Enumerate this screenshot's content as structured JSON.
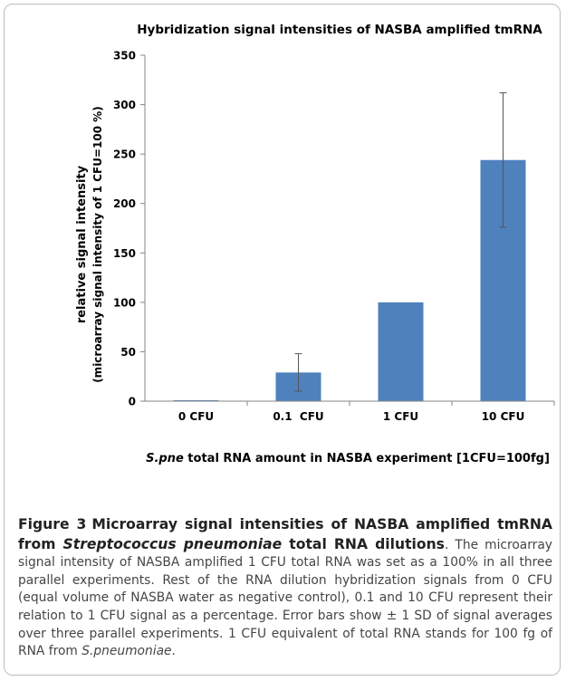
{
  "chart_data": {
    "type": "bar",
    "title": "Hybridization signal intensities of NASBA amplified tmRNA",
    "ylabel_line1": "relative signal intensity",
    "ylabel_line2": "(microarray signal intensity of 1 CFU=100 %)",
    "xlabel_italic": "S.pne",
    "xlabel_rest": " total RNA amount in NASBA experiment [1CFU=100fg]",
    "categories": [
      "0 CFU",
      "0.1  CFU",
      "1 CFU",
      "10 CFU"
    ],
    "values": [
      1,
      29,
      100,
      244
    ],
    "error": [
      0,
      19,
      0,
      68
    ],
    "ylim": [
      0,
      350
    ],
    "yticks": [
      0,
      50,
      100,
      150,
      200,
      250,
      300,
      350
    ],
    "grid": false,
    "legend": false,
    "bar_color": "#4f81bd"
  },
  "caption": {
    "label": "Figure 3",
    "title_part1": "Microarray signal intensities of NASBA amplified tmRNA from ",
    "title_italic": "Streptococcus pneumoniae",
    "title_part2": " total RNA dilutions",
    "title_end": ".",
    "body_part1": " The microarray signal intensity of NASBA amplified 1 CFU total RNA was set as a 100% in all three parallel experiments. Rest of the RNA dilution hybridization signals from 0 CFU (equal volume of NASBA water as negative control), 0.1 and 10 CFU represent their relation to 1 CFU signal as a percentage. Error bars show ± 1 SD of signal averages over three parallel experiments. 1 CFU equivalent of total RNA stands for 100 fg of RNA from ",
    "body_italic": "S.pneumoniae",
    "body_end": "."
  }
}
